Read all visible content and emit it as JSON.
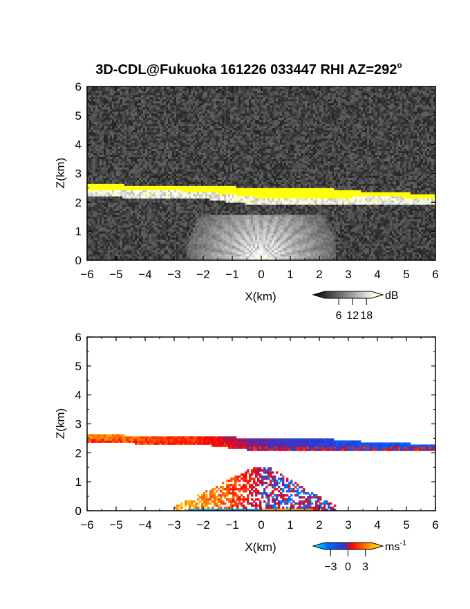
{
  "title": "3D-CDL@Fukuoka 161226 033447 RHI AZ=292",
  "title_degree_symbol": "o",
  "chart_data": [
    {
      "type": "heatmap",
      "name": "backscatter-intensity",
      "xlabel": "X(km)",
      "ylabel": "Z(km)",
      "xlim": [
        -6,
        6
      ],
      "ylim": [
        0,
        6
      ],
      "xticks": [
        -6,
        -5,
        -4,
        -3,
        -2,
        -1,
        0,
        1,
        2,
        3,
        4,
        5,
        6
      ],
      "yticks": [
        0,
        1,
        2,
        3,
        4,
        5,
        6
      ],
      "grid": false,
      "colorbar": {
        "unit": "dB",
        "ticks": [
          6,
          12,
          18
        ],
        "range": [
          0,
          20
        ],
        "colors": [
          "#000000",
          "#555555",
          "#aaaaaa",
          "#ffffff",
          "#ffff00"
        ]
      },
      "features": {
        "cloud_layer_base_km": [
          [
            -6,
            2.45
          ],
          [
            -2,
            2.38
          ],
          [
            0,
            2.15
          ],
          [
            2,
            2.15
          ],
          [
            4,
            2.2
          ],
          [
            6,
            2.15
          ]
        ],
        "cloud_layer_top_km": [
          [
            -6,
            2.62
          ],
          [
            -2,
            2.58
          ],
          [
            0,
            2.5
          ],
          [
            2,
            2.5
          ],
          [
            4,
            2.35
          ],
          [
            6,
            2.3
          ]
        ],
        "cloud_layer_level_dB": 20,
        "background_level_dB": 2
      }
    },
    {
      "type": "heatmap",
      "name": "doppler-velocity",
      "xlabel": "X(km)",
      "ylabel": "Z(km)",
      "xlim": [
        -6,
        6
      ],
      "ylim": [
        0,
        6
      ],
      "xticks": [
        -6,
        -5,
        -4,
        -3,
        -2,
        -1,
        0,
        1,
        2,
        3,
        4,
        5,
        6
      ],
      "yticks": [
        0,
        1,
        2,
        3,
        4,
        5,
        6
      ],
      "grid": false,
      "colorbar": {
        "unit": "ms",
        "unit_exponent": "-1",
        "ticks": [
          -3,
          0,
          3
        ],
        "range": [
          -4,
          4
        ],
        "colors": [
          "#00ffff",
          "#0066ff",
          "#3333cc",
          "#ff0000",
          "#ff8800",
          "#ffff00"
        ]
      },
      "features": {
        "cloud_layer_velocity_ms": [
          [
            -6,
            2.5
          ],
          [
            -2,
            1.2
          ],
          [
            0,
            -0.5
          ],
          [
            3,
            -1.6
          ],
          [
            6,
            -2.0
          ]
        ],
        "low_level_velocity_ms": [
          [
            -3,
            3.0
          ],
          [
            -1.5,
            2.2
          ],
          [
            0,
            0.3
          ],
          [
            2,
            0.5
          ]
        ]
      }
    }
  ]
}
